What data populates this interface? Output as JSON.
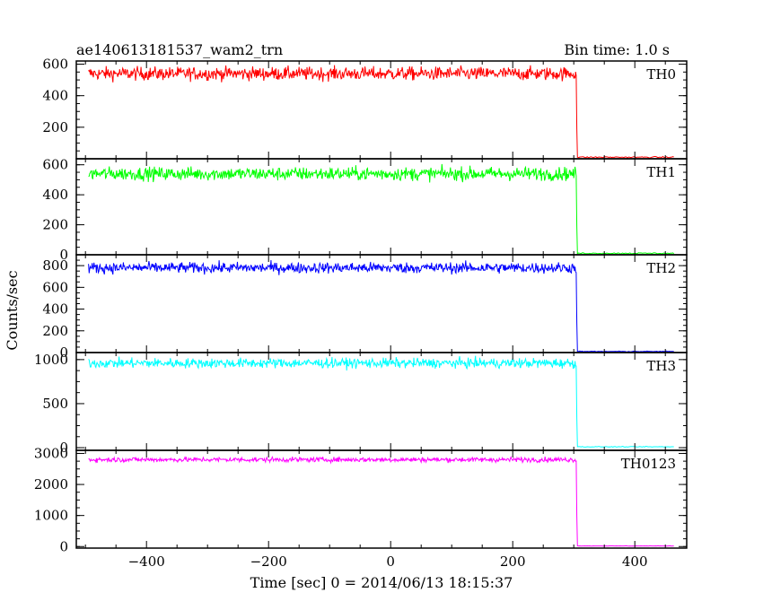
{
  "header": {
    "title": "ae140613181537_wam2_trn",
    "bin_time": "Bin time: 1.0 s"
  },
  "chart_data": {
    "type": "line",
    "xlabel": "Time [sec] 0 = 2014/06/13 18:15:37",
    "ylabel": "Counts/sec",
    "xlim": [
      -515,
      485
    ],
    "x_ticks": [
      -400,
      -200,
      0,
      200,
      400
    ],
    "x_tick_labels": [
      "−400",
      "−200",
      "0",
      "200",
      "400"
    ],
    "x_start": -495,
    "x_end": 465,
    "drop_time": 305,
    "grid": false,
    "panels": [
      {
        "name": "TH0",
        "color": "#ff0000",
        "ylim": [
          0,
          620
        ],
        "ticks": [
          200,
          400,
          600
        ],
        "tick_labels": [
          "200",
          "400",
          "600"
        ],
        "level": 540,
        "noise": 38,
        "post_level": 10
      },
      {
        "name": "TH1",
        "color": "#00ff00",
        "ylim": [
          0,
          640
        ],
        "ticks": [
          0,
          200,
          400,
          600
        ],
        "tick_labels": [
          "0",
          "200",
          "400",
          "600"
        ],
        "level": 540,
        "noise": 40,
        "post_level": 10
      },
      {
        "name": "TH2",
        "color": "#0000ff",
        "ylim": [
          0,
          900
        ],
        "ticks": [
          0,
          200,
          400,
          600,
          800
        ],
        "tick_labels": [
          "0",
          "200",
          "400",
          "600",
          "800"
        ],
        "level": 780,
        "noise": 45,
        "post_level": 10
      },
      {
        "name": "TH3",
        "color": "#00ffff",
        "ylim": [
          -30,
          1080
        ],
        "ticks": [
          0,
          500,
          1000
        ],
        "tick_labels": [
          "0",
          "500",
          "1000"
        ],
        "level": 960,
        "noise": 50,
        "post_level": 10
      },
      {
        "name": "TH0123",
        "color": "#ff00ff",
        "ylim": [
          -50,
          3100
        ],
        "ticks": [
          0,
          1000,
          2000,
          3000
        ],
        "tick_labels": [
          "0",
          "1000",
          "2000",
          "3000"
        ],
        "level": 2800,
        "noise": 70,
        "post_level": 20
      }
    ]
  }
}
